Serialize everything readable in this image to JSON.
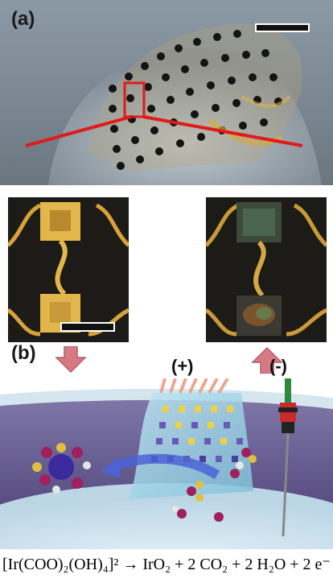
{
  "panel_a": {
    "label": "(a)"
  },
  "panel_b": {
    "label": "(b)",
    "positive_electrode_label": "(+)",
    "negative_electrode_label": "(-)"
  },
  "equation": {
    "text": "[Ir(COO)₂(OH)₄]² → IrO₂ + 2 CO₂ + 2 H₂O + 2 e⁻"
  },
  "colors": {
    "highlight_red": "#e01a1a",
    "arrow_pink": "#d77a84",
    "sheet_blue": "#9fd0e6",
    "liquid_purple": "#5a4f86"
  }
}
